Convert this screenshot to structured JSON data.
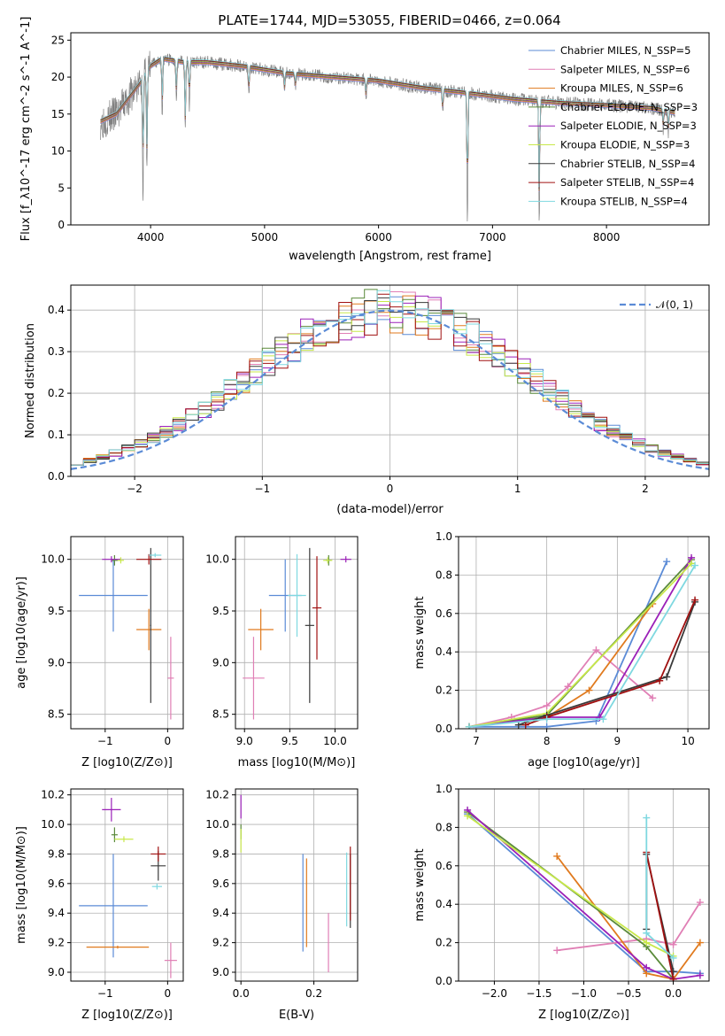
{
  "title": "PLATE=1744, MJD=53055, FIBERID=0466, z=0.064",
  "colors": {
    "chabrier_miles": "#5b8bd6",
    "salpeter_miles": "#e07fb5",
    "kroupa_miles": "#e07a1e",
    "chabrier_elodie": "#5a8a3a",
    "salpeter_elodie": "#9b20b8",
    "kroupa_elodie": "#c8e84a",
    "chabrier_stelib": "#3a3a3a",
    "salpeter_stelib": "#a01010",
    "kroupa_stelib": "#7fd8e0",
    "data": "#808080",
    "normal_curve": "#5b8bd6"
  },
  "chart_data": [
    {
      "id": "spectrum",
      "type": "line",
      "title": "PLATE=1744, MJD=53055, FIBERID=0466, z=0.064",
      "xlabel": "wavelength [Angstrom, rest frame]",
      "ylabel": "Flux [f_λ10^-17 erg cm^-2 s^-1 A^-1]",
      "xlim": [
        3300,
        8900
      ],
      "ylim": [
        0,
        26
      ],
      "xticks": [
        4000,
        5000,
        6000,
        7000,
        8000
      ],
      "yticks": [
        0,
        5,
        10,
        15,
        20,
        25
      ],
      "legend_position": "top-right",
      "continuum": {
        "x": [
          3560,
          3700,
          3800,
          3900,
          4000,
          4100,
          4300,
          4500,
          4800,
          5200,
          5600,
          6000,
          6400,
          6800,
          7200,
          7600,
          8000,
          8400,
          8600
        ],
        "y": [
          14,
          15,
          17,
          19,
          21.5,
          22.5,
          22,
          22,
          21.5,
          20.5,
          20,
          19.5,
          18.5,
          17.8,
          17,
          16.5,
          16.2,
          15.8,
          15.2
        ]
      },
      "absorption_lines": [
        {
          "x": 3933,
          "y": 5
        },
        {
          "x": 3968,
          "y": 8
        },
        {
          "x": 4102,
          "y": 15
        },
        {
          "x": 4226,
          "y": 17
        },
        {
          "x": 4304,
          "y": 12.5
        },
        {
          "x": 4340,
          "y": 16
        },
        {
          "x": 4861,
          "y": 17.5
        },
        {
          "x": 5175,
          "y": 18
        },
        {
          "x": 5270,
          "y": 18.5
        },
        {
          "x": 5890,
          "y": 17
        },
        {
          "x": 6563,
          "y": 15
        },
        {
          "x": 6780,
          "y": 0
        },
        {
          "x": 7410,
          "y": 0
        },
        {
          "x": 8498,
          "y": 13
        },
        {
          "x": 8542,
          "y": 12.5
        },
        {
          "x": 8662,
          "y": 13
        }
      ],
      "series": [
        {
          "name": "Chabrier MILES, N_SSP=5"
        },
        {
          "name": "Salpeter MILES, N_SSP=6"
        },
        {
          "name": "Kroupa MILES, N_SSP=6"
        },
        {
          "name": "Chabrier ELODIE, N_SSP=3"
        },
        {
          "name": "Salpeter ELODIE, N_SSP=3"
        },
        {
          "name": "Kroupa ELODIE, N_SSP=3"
        },
        {
          "name": "Chabrier STELIB, N_SSP=4"
        },
        {
          "name": "Salpeter STELIB, N_SSP=4"
        },
        {
          "name": "Kroupa STELIB, N_SSP=4"
        }
      ]
    },
    {
      "id": "residuals",
      "type": "line",
      "xlabel": "(data-model)/error",
      "ylabel": "Normed distribution",
      "xlim": [
        -2.5,
        2.5
      ],
      "ylim": [
        0,
        0.46
      ],
      "xticks": [
        -2,
        -1,
        0,
        1,
        2
      ],
      "yticks": [
        0.0,
        0.1,
        0.2,
        0.3,
        0.4
      ],
      "grid": true,
      "legend_position": "top-right",
      "normal_label": "𝒩(0, 1)",
      "bin_width": 0.1
    },
    {
      "id": "age_vs_Z",
      "type": "scatter",
      "xlabel": "Z [log10(Z/Z⊙)]",
      "ylabel": "age  [log10(age/yr)]",
      "xlim": [
        -1.55,
        0.25
      ],
      "ylim": [
        8.36,
        10.22
      ],
      "xticks": [
        -1,
        0
      ],
      "yticks": [
        8.5,
        9.0,
        9.5,
        10.0
      ],
      "grid": true,
      "points": [
        {
          "model": "chabrier_miles",
          "x": -0.87,
          "xerr": 0.55,
          "y": 9.65,
          "yerr": 0.35
        },
        {
          "model": "salpeter_miles",
          "x": 0.05,
          "xerr": 0.05,
          "y": 8.85,
          "yerr": 0.4
        },
        {
          "model": "kroupa_miles",
          "x": -0.3,
          "xerr": 0.2,
          "y": 9.32,
          "yerr": 0.2
        },
        {
          "model": "chabrier_elodie",
          "x": -0.85,
          "xerr": 0.05,
          "y": 9.99,
          "yerr": 0.05
        },
        {
          "model": "salpeter_elodie",
          "x": -0.9,
          "xerr": 0.15,
          "y": 10.0,
          "yerr": 0.03
        },
        {
          "model": "kroupa_elodie",
          "x": -0.75,
          "xerr": 0.05,
          "y": 9.99,
          "yerr": 0.03
        },
        {
          "model": "chabrier_stelib",
          "x": -0.27,
          "xerr": 0.01,
          "y": 9.36,
          "yerr": 0.75
        },
        {
          "model": "salpeter_stelib",
          "x": -0.3,
          "xerr": 0.2,
          "y": 10.0,
          "yerr": 0.05
        },
        {
          "model": "kroupa_stelib",
          "x": -0.2,
          "xerr": 0.1,
          "y": 10.04,
          "yerr": 0.02
        }
      ]
    },
    {
      "id": "age_vs_mass",
      "type": "scatter",
      "xlabel": "mass [log10(M/M⊙)]",
      "ylabel": "",
      "xlim": [
        8.9,
        10.25
      ],
      "ylim": [
        8.36,
        10.22
      ],
      "xticks": [
        9.0,
        9.5,
        10.0
      ],
      "yticks": [
        8.5,
        9.0,
        9.5,
        10.0
      ],
      "grid": true,
      "points": [
        {
          "model": "chabrier_miles",
          "x": 9.45,
          "xerr": 0.18,
          "y": 9.65,
          "yerr": 0.35
        },
        {
          "model": "salpeter_miles",
          "x": 9.1,
          "xerr": 0.12,
          "y": 8.85,
          "yerr": 0.4
        },
        {
          "model": "kroupa_miles",
          "x": 9.18,
          "xerr": 0.14,
          "y": 9.32,
          "yerr": 0.2
        },
        {
          "model": "chabrier_elodie",
          "x": 9.93,
          "xerr": 0.03,
          "y": 9.99,
          "yerr": 0.05
        },
        {
          "model": "salpeter_elodie",
          "x": 10.12,
          "xerr": 0.06,
          "y": 10.0,
          "yerr": 0.03
        },
        {
          "model": "kroupa_elodie",
          "x": 9.92,
          "xerr": 0.05,
          "y": 9.99,
          "yerr": 0.03
        },
        {
          "model": "chabrier_stelib",
          "x": 9.72,
          "xerr": 0.05,
          "y": 9.36,
          "yerr": 0.75
        },
        {
          "model": "salpeter_stelib",
          "x": 9.8,
          "xerr": 0.05,
          "y": 9.53,
          "yerr": 0.5
        },
        {
          "model": "kroupa_stelib",
          "x": 9.58,
          "xerr": 0.1,
          "y": 9.65,
          "yerr": 0.4
        }
      ]
    },
    {
      "id": "mass_weight_vs_age",
      "type": "line",
      "xlabel": "age  [log10(age/yr)]",
      "ylabel": "mass weight",
      "xlim": [
        6.75,
        10.3
      ],
      "ylim": [
        0,
        1.0
      ],
      "xticks": [
        7,
        8,
        9,
        10
      ],
      "yticks": [
        0.0,
        0.2,
        0.4,
        0.6,
        0.8,
        1.0
      ],
      "grid": true,
      "series": [
        {
          "model": "chabrier_miles",
          "x": [
            6.9,
            8.0,
            8.7,
            9.7
          ],
          "y": [
            0.01,
            0.01,
            0.04,
            0.87
          ]
        },
        {
          "model": "salpeter_miles",
          "x": [
            6.9,
            7.5,
            8.0,
            8.3,
            8.7,
            9.5
          ],
          "y": [
            0.01,
            0.06,
            0.12,
            0.22,
            0.41,
            0.16
          ]
        },
        {
          "model": "kroupa_miles",
          "x": [
            6.9,
            8.0,
            8.6,
            9.5
          ],
          "y": [
            0.01,
            0.06,
            0.2,
            0.65
          ]
        },
        {
          "model": "chabrier_elodie",
          "x": [
            6.9,
            8.0,
            10.05
          ],
          "y": [
            0.01,
            0.07,
            0.88
          ]
        },
        {
          "model": "salpeter_elodie",
          "x": [
            6.9,
            8.0,
            8.75,
            10.05
          ],
          "y": [
            0.01,
            0.06,
            0.06,
            0.89
          ]
        },
        {
          "model": "kroupa_elodie",
          "x": [
            6.9,
            8.0,
            10.05
          ],
          "y": [
            0.01,
            0.08,
            0.86
          ]
        },
        {
          "model": "chabrier_stelib",
          "x": [
            7.6,
            8.0,
            9.7,
            10.1
          ],
          "y": [
            0.02,
            0.07,
            0.27,
            0.66
          ]
        },
        {
          "model": "salpeter_stelib",
          "x": [
            7.7,
            8.0,
            9.6,
            10.1
          ],
          "y": [
            0.02,
            0.06,
            0.25,
            0.67
          ]
        },
        {
          "model": "kroupa_stelib",
          "x": [
            6.9,
            8.0,
            8.8,
            10.1
          ],
          "y": [
            0.01,
            0.05,
            0.05,
            0.85
          ]
        }
      ]
    },
    {
      "id": "mass_vs_Z",
      "type": "scatter",
      "xlabel": "Z [log10(Z/Z⊙)]",
      "ylabel": "mass [log10(M/M⊙)]",
      "xlim": [
        -1.55,
        0.25
      ],
      "ylim": [
        8.94,
        10.24
      ],
      "xticks": [
        -1,
        0
      ],
      "yticks": [
        9.0,
        9.2,
        9.4,
        9.6,
        9.8,
        10.0,
        10.2
      ],
      "grid": true,
      "points": [
        {
          "model": "chabrier_miles",
          "x": -0.87,
          "xerr": 0.55,
          "y": 9.45,
          "yerr": 0.35
        },
        {
          "model": "salpeter_miles",
          "x": 0.05,
          "xerr": 0.1,
          "y": 9.08,
          "yerr": 0.12
        },
        {
          "model": "kroupa_miles",
          "x": -0.8,
          "xerr": 0.5,
          "y": 9.17,
          "yerr": 0.01
        },
        {
          "model": "chabrier_elodie",
          "x": -0.85,
          "xerr": 0.05,
          "y": 9.93,
          "yerr": 0.05
        },
        {
          "model": "salpeter_elodie",
          "x": -0.9,
          "xerr": 0.15,
          "y": 10.1,
          "yerr": 0.08
        },
        {
          "model": "kroupa_elodie",
          "x": -0.7,
          "xerr": 0.15,
          "y": 9.9,
          "yerr": 0.02
        },
        {
          "model": "chabrier_stelib",
          "x": -0.15,
          "xerr": 0.12,
          "y": 9.72,
          "yerr": 0.1
        },
        {
          "model": "salpeter_stelib",
          "x": -0.15,
          "xerr": 0.12,
          "y": 9.8,
          "yerr": 0.05
        },
        {
          "model": "kroupa_stelib",
          "x": -0.17,
          "xerr": 0.08,
          "y": 9.58,
          "yerr": 0.02
        }
      ]
    },
    {
      "id": "mass_vs_ebv",
      "type": "scatter",
      "xlabel": "E(B-V)",
      "ylabel": "",
      "xlim": [
        -0.015,
        0.32
      ],
      "ylim": [
        8.94,
        10.24
      ],
      "xticks": [
        0.0,
        0.2
      ],
      "yticks": [
        9.0,
        9.2,
        9.4,
        9.6,
        9.8,
        10.0,
        10.2
      ],
      "grid": true,
      "points": [
        {
          "model": "chabrier_miles",
          "x": 0.17,
          "y": 9.47,
          "yerr": 0.33
        },
        {
          "model": "salpeter_miles",
          "x": 0.24,
          "y": 9.2,
          "yerr": 0.2
        },
        {
          "model": "kroupa_miles",
          "x": 0.18,
          "y": 9.47,
          "yerr": 0.3
        },
        {
          "model": "chabrier_elodie",
          "x": 0.0,
          "y": 9.95,
          "yerr": 0.05
        },
        {
          "model": "salpeter_elodie",
          "x": 0.0,
          "y": 10.12,
          "yerr": 0.08
        },
        {
          "model": "kroupa_elodie",
          "x": 0.0,
          "y": 9.89,
          "yerr": 0.08
        },
        {
          "model": "chabrier_stelib",
          "x": 0.3,
          "y": 9.55,
          "yerr": 0.25
        },
        {
          "model": "salpeter_stelib",
          "x": 0.3,
          "y": 9.6,
          "yerr": 0.25
        },
        {
          "model": "kroupa_stelib",
          "x": 0.29,
          "y": 9.56,
          "yerr": 0.25
        }
      ]
    },
    {
      "id": "mass_weight_vs_Z",
      "type": "line",
      "xlabel": "Z [log10(Z/Z⊙)]",
      "ylabel": "mass weight",
      "xlim": [
        -2.4,
        0.4
      ],
      "ylim": [
        0,
        1.0
      ],
      "xticks": [
        -2.0,
        -1.5,
        -1.0,
        -0.5,
        0.0
      ],
      "yticks": [
        0.0,
        0.2,
        0.4,
        0.6,
        0.8,
        1.0
      ],
      "grid": true,
      "series": [
        {
          "model": "chabrier_miles",
          "x": [
            -2.3,
            -0.3,
            0.0,
            0.3
          ],
          "y": [
            0.87,
            0.05,
            0.05,
            0.04
          ]
        },
        {
          "model": "salpeter_miles",
          "x": [
            -1.3,
            -0.3,
            0.0,
            0.3
          ],
          "y": [
            0.16,
            0.22,
            0.19,
            0.41
          ]
        },
        {
          "model": "kroupa_miles",
          "x": [
            -1.3,
            -0.3,
            0.0,
            0.3
          ],
          "y": [
            0.65,
            0.04,
            0.01,
            0.2
          ]
        },
        {
          "model": "chabrier_elodie",
          "x": [
            -2.3,
            -0.3,
            0.0
          ],
          "y": [
            0.88,
            0.18,
            0.01
          ]
        },
        {
          "model": "salpeter_elodie",
          "x": [
            -2.3,
            -0.3,
            0.0,
            0.3
          ],
          "y": [
            0.89,
            0.07,
            0.01,
            0.03
          ]
        },
        {
          "model": "kroupa_elodie",
          "x": [
            -2.3,
            -0.3,
            0.0
          ],
          "y": [
            0.86,
            0.2,
            0.13
          ]
        },
        {
          "model": "chabrier_stelib",
          "x": [
            -0.3,
            -0.3,
            0.0
          ],
          "y": [
            0.27,
            0.66,
            0.05
          ]
        },
        {
          "model": "salpeter_stelib",
          "x": [
            -0.3,
            0.0
          ],
          "y": [
            0.67,
            0.01
          ]
        },
        {
          "model": "kroupa_stelib",
          "x": [
            -0.3,
            -0.3,
            0.0
          ],
          "y": [
            0.85,
            0.25,
            0.12
          ]
        }
      ]
    }
  ]
}
